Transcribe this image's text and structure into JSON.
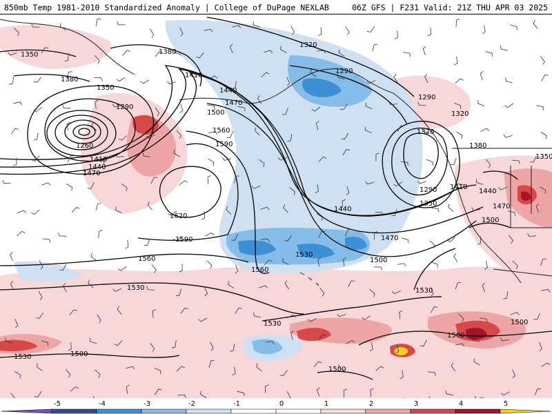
{
  "header": {
    "title_left": "850mb Temp 1981-2010 Standardized Anomaly | College of DuPage NEXLAB",
    "title_right": "06Z GFS | F231 Valid: 21Z THU APR 03 2025"
  },
  "map": {
    "contour_labels": [
      "1350",
      "1380",
      "1350",
      "1290",
      "1260",
      "1410",
      "1440",
      "1470",
      "1380",
      "1410",
      "1440",
      "1470",
      "1500",
      "1560",
      "1590",
      "1620",
      "1590",
      "1560",
      "1530",
      "1320",
      "1290",
      "1320",
      "1290",
      "1320",
      "1380",
      "1350",
      "1290",
      "1350",
      "1410",
      "1440",
      "1470",
      "1500",
      "1440",
      "1470",
      "1500",
      "1560",
      "1530",
      "1530",
      "1530",
      "1500",
      "1500",
      "1500",
      "1530",
      "1500"
    ],
    "colors": {
      "neg5": "#7b4fb8",
      "neg4": "#2a4f8f",
      "neg3": "#3d8fd6",
      "neg2": "#86bce8",
      "neg1": "#cfe0f2",
      "zero": "#ffffff",
      "pos1": "#f7d7d7",
      "pos2": "#eea5a5",
      "pos3": "#d94848",
      "pos4": "#a5132a",
      "pos5": "#f2d21b"
    }
  },
  "colorbar": {
    "labels": [
      "-5",
      "-4",
      "-3",
      "-2",
      "-1",
      "0",
      "1",
      "2",
      "3",
      "4",
      "5"
    ]
  }
}
